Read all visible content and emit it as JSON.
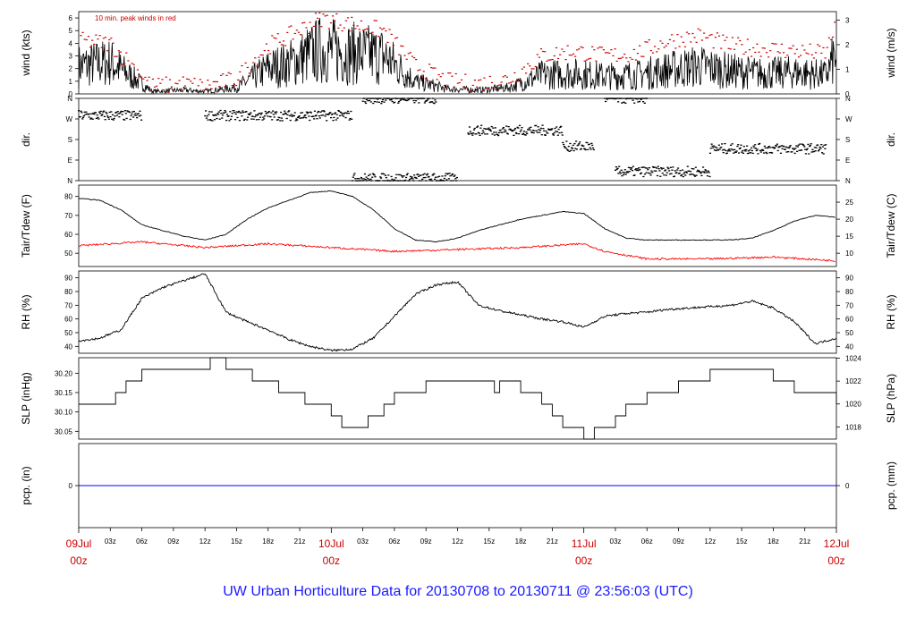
{
  "title": "UW Urban Horticulture Data for 20130708  to  20130711 @ 23:56:03  (UTC)",
  "chart_data": [
    {
      "type": "line",
      "panel": "wind",
      "ylabel_left": "wind (kts)",
      "ylabel_right": "wind (m/s)",
      "ylim": [
        0,
        6.5
      ],
      "yticks_left": [
        "0",
        "1",
        "2",
        "3",
        "4",
        "5",
        "6"
      ],
      "yticks_right": [
        "0",
        "1",
        "2",
        "3"
      ],
      "annotation": "10 min. peak winds in red",
      "series": [
        {
          "color": "#000000",
          "x_hours": [
            0,
            3,
            6,
            7,
            10,
            12,
            15,
            18,
            20,
            23,
            26,
            29,
            32,
            35,
            38,
            41,
            44,
            47,
            50,
            53,
            56,
            59,
            62,
            65,
            68,
            71,
            72
          ],
          "values": [
            2.2,
            2.5,
            0.8,
            0.2,
            0.3,
            0.2,
            0.5,
            2.0,
            2.4,
            3.5,
            3.2,
            3.0,
            1.0,
            0.4,
            0.3,
            0.5,
            1.5,
            1.6,
            1.4,
            1.5,
            1.9,
            2.2,
            1.8,
            1.6,
            1.7,
            1.5,
            3.2
          ]
        },
        {
          "color": "#cc0000",
          "x_hours": [
            0,
            3,
            6,
            7,
            10,
            12,
            15,
            18,
            20,
            23,
            26,
            29,
            32,
            35,
            38,
            41,
            44,
            47,
            50,
            53,
            56,
            59,
            62,
            65,
            68,
            71,
            72
          ],
          "values": [
            4.2,
            4.0,
            1.5,
            0.6,
            0.8,
            0.6,
            1.2,
            3.8,
            4.6,
            6.0,
            5.5,
            5.0,
            2.2,
            1.0,
            0.8,
            1.2,
            3.0,
            3.4,
            3.0,
            3.2,
            4.2,
            4.6,
            3.8,
            3.6,
            3.4,
            3.2,
            5.8
          ]
        }
      ]
    },
    {
      "type": "scatter",
      "panel": "dir",
      "ylabel_left": "dir.",
      "ylabel_right": "dir.",
      "yticks": [
        "N",
        "E",
        "S",
        "W",
        "N"
      ],
      "ylim": [
        0,
        360
      ],
      "clusters": [
        {
          "x_hours": [
            0,
            6
          ],
          "values": [
            285,
            285
          ]
        },
        {
          "x_hours": [
            12,
            26
          ],
          "values": [
            285,
            285
          ]
        },
        {
          "x_hours": [
            27,
            34
          ],
          "values": [
            360,
            360
          ]
        },
        {
          "x_hours": [
            26,
            36
          ],
          "values": [
            10,
            10
          ]
        },
        {
          "x_hours": [
            37,
            46
          ],
          "values": [
            220,
            220
          ]
        },
        {
          "x_hours": [
            46,
            49
          ],
          "values": [
            150,
            150
          ]
        },
        {
          "x_hours": [
            50,
            54
          ],
          "values": [
            360,
            360
          ]
        },
        {
          "x_hours": [
            51,
            60
          ],
          "values": [
            40,
            40
          ]
        },
        {
          "x_hours": [
            60,
            71
          ],
          "values": [
            140,
            140
          ]
        }
      ]
    },
    {
      "type": "line",
      "panel": "temperature",
      "ylabel_left": "Tair/Tdew (F)",
      "ylabel_right": "Tair/Tdew (C)",
      "ylim": [
        43,
        86
      ],
      "yticks_left": [
        "50",
        "60",
        "70",
        "80"
      ],
      "yticks_right": [
        "10",
        "15",
        "20",
        "25"
      ],
      "series": [
        {
          "name": "Tair",
          "color": "#000000",
          "x_hours": [
            0,
            2,
            4,
            6,
            8,
            10,
            12,
            14,
            16,
            18,
            20,
            22,
            24,
            26,
            28,
            30,
            32,
            34,
            36,
            38,
            40,
            42,
            44,
            46,
            48,
            50,
            52,
            54,
            56,
            58,
            60,
            62,
            64,
            66,
            68,
            70,
            72
          ],
          "values": [
            79,
            78,
            73,
            65,
            62,
            59,
            57,
            60,
            68,
            74,
            78,
            82,
            83,
            80,
            73,
            63,
            57,
            56,
            58,
            62,
            65,
            68,
            70,
            72,
            71,
            63,
            58,
            57,
            57,
            57,
            57,
            57,
            58,
            62,
            67,
            70,
            69
          ]
        },
        {
          "name": "Tdew",
          "color": "#ff0000",
          "x_hours": [
            0,
            6,
            12,
            18,
            24,
            30,
            36,
            42,
            48,
            50,
            54,
            60,
            66,
            72
          ],
          "values": [
            54,
            56,
            53,
            55,
            53,
            51,
            52,
            53,
            55,
            51,
            47,
            47,
            48,
            46
          ]
        }
      ]
    },
    {
      "type": "line",
      "panel": "rh",
      "ylabel_left": "RH (%)",
      "ylabel_right": "RH (%)",
      "ylim": [
        35,
        95
      ],
      "yticks": [
        "40",
        "50",
        "60",
        "70",
        "80",
        "90"
      ],
      "series": [
        {
          "color": "#000000",
          "x_hours": [
            0,
            2,
            4,
            6,
            8,
            10,
            12,
            14,
            16,
            18,
            20,
            22,
            24,
            26,
            28,
            30,
            32,
            34,
            36,
            38,
            40,
            42,
            44,
            46,
            48,
            50,
            52,
            54,
            56,
            58,
            60,
            62,
            64,
            66,
            68,
            70,
            72
          ],
          "values": [
            44,
            46,
            52,
            75,
            83,
            88,
            93,
            65,
            58,
            52,
            45,
            40,
            37,
            38,
            46,
            62,
            78,
            85,
            87,
            70,
            66,
            63,
            60,
            58,
            54,
            62,
            64,
            65,
            67,
            68,
            69,
            70,
            73,
            68,
            58,
            42,
            46
          ]
        }
      ]
    },
    {
      "type": "line",
      "panel": "slp",
      "ylabel_left": "SLP (inHg)",
      "ylabel_right": "SLP (hPa)",
      "ylim": [
        30.03,
        30.24
      ],
      "yticks_left": [
        "30.05",
        "30.10",
        "30.15",
        "30.20"
      ],
      "yticks_right": [
        "1018",
        "1020",
        "1022",
        "1024"
      ],
      "series": [
        {
          "color": "#000000",
          "x_hours": [
            0,
            3.5,
            4.5,
            6,
            12.5,
            14,
            16,
            16.5,
            18.5,
            19,
            21,
            21.5,
            24,
            25,
            27,
            27.5,
            28.5,
            29,
            30,
            31,
            33,
            37,
            39.5,
            40,
            41,
            42,
            44,
            45,
            46,
            47,
            48,
            49,
            50,
            51,
            52,
            53,
            54,
            55,
            57,
            59,
            60,
            61,
            63,
            66,
            66.5,
            68,
            71,
            72
          ],
          "values": [
            30.12,
            30.15,
            30.18,
            30.21,
            30.24,
            30.21,
            30.21,
            30.18,
            30.18,
            30.15,
            30.15,
            30.12,
            30.09,
            30.06,
            30.06,
            30.09,
            30.09,
            30.12,
            30.15,
            30.15,
            30.18,
            30.18,
            30.15,
            30.18,
            30.18,
            30.15,
            30.12,
            30.09,
            30.06,
            30.06,
            30.03,
            30.06,
            30.06,
            30.09,
            30.12,
            30.12,
            30.15,
            30.15,
            30.18,
            30.18,
            30.21,
            30.21,
            30.21,
            30.18,
            30.18,
            30.15,
            30.15,
            30.12
          ]
        }
      ]
    },
    {
      "type": "line",
      "panel": "pcp",
      "ylabel_left": "pcp. (in)",
      "ylabel_right": "pcp. (mm)",
      "ylim": [
        -1,
        1
      ],
      "yticks_left": [
        "0"
      ],
      "yticks_right": [
        "0"
      ],
      "series": [
        {
          "color": "#0000ff",
          "x_hours": [
            0,
            72
          ],
          "values": [
            0,
            0
          ]
        }
      ]
    }
  ],
  "x_axis": {
    "range_hours": [
      0,
      72
    ],
    "hour_ticks": [
      {
        "h": 3,
        "label": "03z"
      },
      {
        "h": 6,
        "label": "06z"
      },
      {
        "h": 9,
        "label": "09z"
      },
      {
        "h": 12,
        "label": "12z"
      },
      {
        "h": 15,
        "label": "15z"
      },
      {
        "h": 18,
        "label": "18z"
      },
      {
        "h": 21,
        "label": "21z"
      },
      {
        "h": 27,
        "label": "03z"
      },
      {
        "h": 30,
        "label": "06z"
      },
      {
        "h": 33,
        "label": "09z"
      },
      {
        "h": 36,
        "label": "12z"
      },
      {
        "h": 39,
        "label": "15z"
      },
      {
        "h": 42,
        "label": "18z"
      },
      {
        "h": 45,
        "label": "21z"
      },
      {
        "h": 51,
        "label": "03z"
      },
      {
        "h": 54,
        "label": "06z"
      },
      {
        "h": 57,
        "label": "09z"
      },
      {
        "h": 60,
        "label": "12z"
      },
      {
        "h": 63,
        "label": "15z"
      },
      {
        "h": 66,
        "label": "18z"
      },
      {
        "h": 69,
        "label": "21z"
      }
    ],
    "day_ticks": [
      {
        "h": 0,
        "day": "09Jul",
        "time": "00z"
      },
      {
        "h": 24,
        "day": "10Jul",
        "time": "00z"
      },
      {
        "h": 48,
        "day": "11Jul",
        "time": "00z"
      },
      {
        "h": 72,
        "day": "12Jul",
        "time": "00z"
      }
    ]
  }
}
